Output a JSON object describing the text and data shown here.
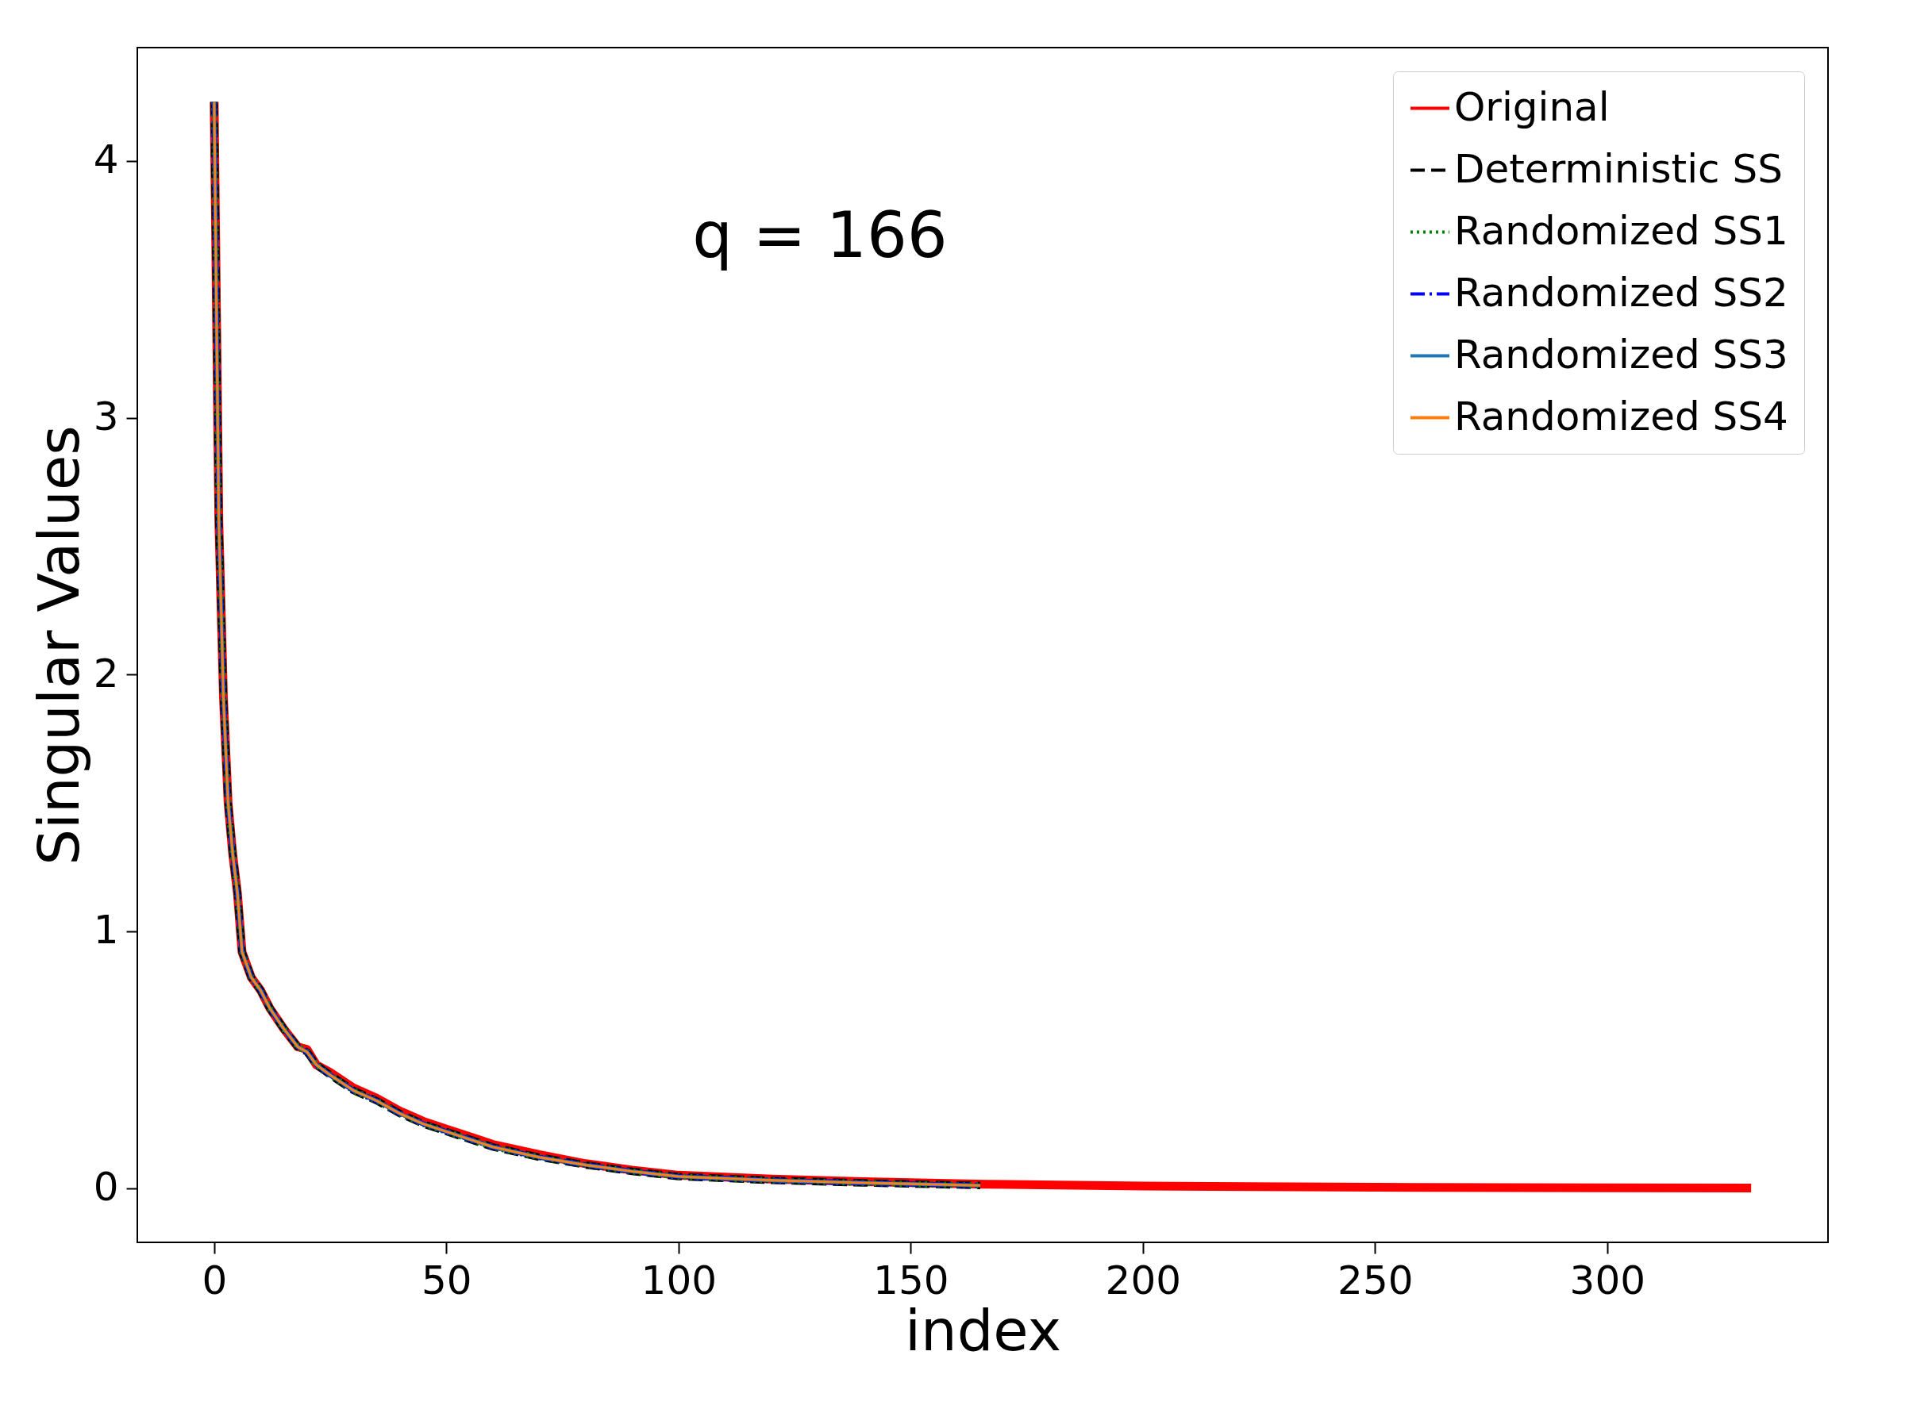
{
  "chart_data": {
    "type": "line",
    "xlabel": "index",
    "ylabel": "Singular Values",
    "annotations": [
      "q = 166"
    ],
    "xlim": [
      -16.55,
      347.55
    ],
    "xticks": [
      0,
      50,
      100,
      150,
      200,
      250,
      300
    ],
    "ylim": [
      -0.2115,
      4.4415
    ],
    "yticks": [
      0,
      1,
      2,
      3,
      4
    ],
    "grid": false,
    "legend": "top right",
    "series": [
      {
        "name": "Original",
        "color": "#ff0000",
        "line_style": "solid",
        "x": [
          0,
          1,
          2,
          3,
          4,
          5,
          6,
          8,
          10,
          12,
          15,
          18,
          20,
          22,
          25,
          30,
          35,
          40,
          45,
          50,
          55,
          60,
          70,
          80,
          90,
          100,
          120,
          140,
          166,
          200,
          250,
          300,
          331
        ],
        "values": [
          4.23,
          2.6,
          1.91,
          1.5,
          1.3,
          1.15,
          0.92,
          0.82,
          0.77,
          0.7,
          0.62,
          0.55,
          0.54,
          0.48,
          0.45,
          0.39,
          0.35,
          0.3,
          0.26,
          0.23,
          0.2,
          0.17,
          0.13,
          0.095,
          0.07,
          0.05,
          0.035,
          0.025,
          0.015,
          0.008,
          0.003,
          0.001,
          0
        ]
      },
      {
        "name": "Deterministic SS",
        "color": "#000000",
        "line_style": "dashed",
        "x": [
          0,
          1,
          2,
          3,
          4,
          5,
          6,
          8,
          10,
          12,
          15,
          18,
          20,
          22,
          25,
          30,
          35,
          40,
          45,
          50,
          55,
          60,
          70,
          80,
          90,
          100,
          120,
          140,
          165
        ],
        "values": [
          4.23,
          2.6,
          1.91,
          1.5,
          1.3,
          1.15,
          0.92,
          0.82,
          0.77,
          0.7,
          0.62,
          0.55,
          0.53,
          0.48,
          0.44,
          0.38,
          0.34,
          0.29,
          0.25,
          0.22,
          0.19,
          0.16,
          0.12,
          0.09,
          0.065,
          0.045,
          0.03,
          0.02,
          0.01
        ]
      },
      {
        "name": "Randomized SS1",
        "color": "#008000",
        "line_style": "dotted",
        "x": [
          0,
          1,
          2,
          3,
          4,
          5,
          6,
          8,
          10,
          12,
          15,
          18,
          20,
          22,
          25,
          30,
          35,
          40,
          45,
          50,
          55,
          60,
          70,
          80,
          90,
          100,
          120,
          140,
          165
        ],
        "values": [
          4.23,
          2.6,
          1.91,
          1.5,
          1.3,
          1.15,
          0.92,
          0.82,
          0.77,
          0.7,
          0.62,
          0.55,
          0.53,
          0.48,
          0.44,
          0.38,
          0.34,
          0.29,
          0.25,
          0.22,
          0.19,
          0.16,
          0.12,
          0.09,
          0.065,
          0.045,
          0.03,
          0.02,
          0.01
        ]
      },
      {
        "name": "Randomized SS2",
        "color": "#0000ff",
        "line_style": "dashdot",
        "x": [
          0,
          1,
          2,
          3,
          4,
          5,
          6,
          8,
          10,
          12,
          15,
          18,
          20,
          22,
          25,
          30,
          35,
          40,
          45,
          50,
          55,
          60,
          70,
          80,
          90,
          100,
          120,
          140,
          165
        ],
        "values": [
          4.23,
          2.6,
          1.91,
          1.5,
          1.3,
          1.15,
          0.92,
          0.82,
          0.77,
          0.7,
          0.62,
          0.55,
          0.53,
          0.48,
          0.44,
          0.38,
          0.34,
          0.29,
          0.25,
          0.22,
          0.19,
          0.16,
          0.12,
          0.09,
          0.065,
          0.045,
          0.03,
          0.02,
          0.01
        ]
      },
      {
        "name": "Randomized SS3",
        "color": "#1f77b4",
        "line_style": "solid",
        "x": [
          0,
          1,
          2,
          3,
          4,
          5,
          6,
          8,
          10,
          12,
          15,
          18,
          20,
          22,
          25,
          30,
          35,
          40,
          45,
          50,
          55,
          60,
          70,
          80,
          90,
          100,
          120,
          140,
          165
        ],
        "values": [
          4.23,
          2.6,
          1.91,
          1.5,
          1.3,
          1.15,
          0.92,
          0.82,
          0.77,
          0.7,
          0.62,
          0.55,
          0.53,
          0.48,
          0.44,
          0.38,
          0.34,
          0.29,
          0.25,
          0.22,
          0.19,
          0.16,
          0.12,
          0.09,
          0.065,
          0.045,
          0.03,
          0.02,
          0.01
        ]
      },
      {
        "name": "Randomized SS4",
        "color": "#ff7f0e",
        "line_style": "solid",
        "x": [
          0,
          1,
          2,
          3,
          4,
          5,
          6,
          8,
          10,
          12,
          15,
          18,
          20,
          22,
          25,
          30,
          35,
          40,
          45,
          50,
          55,
          60,
          70,
          80,
          90,
          100,
          120,
          140,
          165
        ],
        "values": [
          4.23,
          2.6,
          1.91,
          1.5,
          1.3,
          1.15,
          0.92,
          0.82,
          0.77,
          0.7,
          0.62,
          0.55,
          0.53,
          0.48,
          0.44,
          0.38,
          0.34,
          0.29,
          0.25,
          0.22,
          0.19,
          0.16,
          0.12,
          0.09,
          0.065,
          0.045,
          0.03,
          0.02,
          0.01
        ]
      }
    ]
  }
}
